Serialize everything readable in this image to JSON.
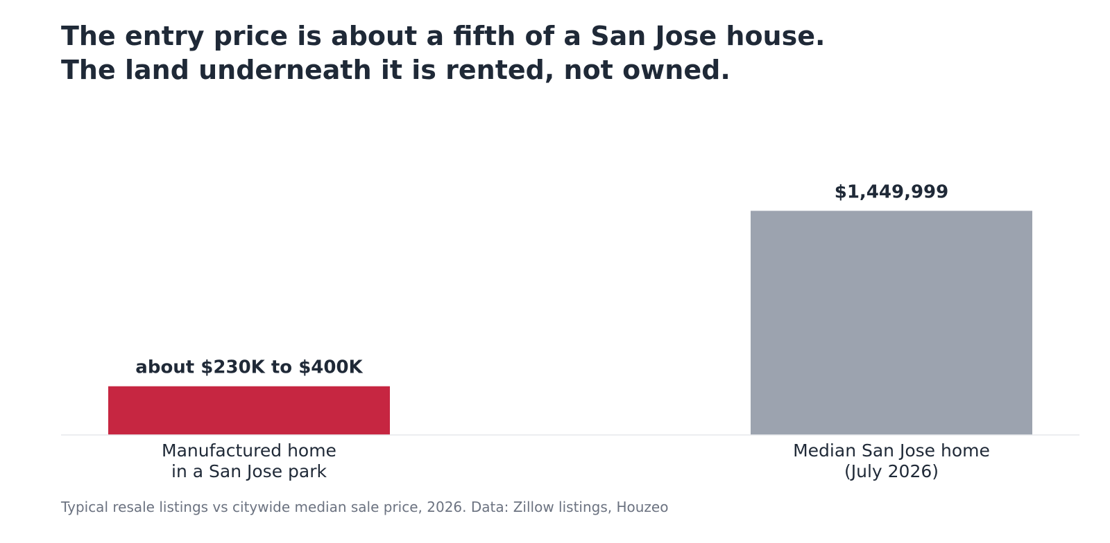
{
  "chart_data": {
    "type": "bar",
    "title_lines": [
      "The entry price is about a fifth of a San Jose house.",
      "The land underneath it is rented, not owned."
    ],
    "caption": "Typical resale listings vs citywide median sale price, 2026. Data: Zillow listings, Houzeo",
    "ylim": [
      0,
      2200000
    ],
    "grid": false,
    "legend": "none",
    "categories": [
      [
        "Manufactured home",
        "in a San Jose park"
      ],
      [
        "Median San Jose home",
        "(July 2026)"
      ]
    ],
    "values": [
      315000,
      1449999
    ],
    "value_range": [
      [
        230000,
        400000
      ],
      null
    ],
    "value_labels": [
      "about $230K to $400K",
      "$1,449,999"
    ],
    "colors": [
      "#c62641",
      "#9ca3af"
    ],
    "baseline_color": "#e5e7eb",
    "text_color": "#1f2937"
  }
}
